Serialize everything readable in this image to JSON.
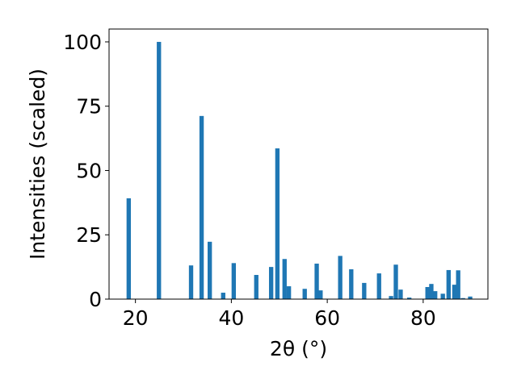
{
  "chart_data": {
    "type": "bar",
    "title": "",
    "xlabel": "2θ (°)",
    "ylabel": "Intensities (scaled)",
    "xlim": [
      14.5,
      93.5
    ],
    "ylim": [
      0,
      105
    ],
    "xticks": [
      20,
      40,
      60,
      80
    ],
    "yticks": [
      0,
      25,
      50,
      75,
      100
    ],
    "grid": false,
    "bar_color": "#1f77b4",
    "bar_width_deg": 0.9,
    "x": [
      18.6,
      24.9,
      31.6,
      33.8,
      35.5,
      38.3,
      40.5,
      45.2,
      48.3,
      49.6,
      51.1,
      52.0,
      55.3,
      57.8,
      58.6,
      62.7,
      65.0,
      67.7,
      70.8,
      73.3,
      74.3,
      75.3,
      77.1,
      80.9,
      81.7,
      82.5,
      84.1,
      85.3,
      86.5,
      87.3,
      88.3,
      89.8
    ],
    "values": [
      39.2,
      100,
      13.1,
      71.2,
      22.3,
      2.5,
      14.0,
      9.4,
      12.5,
      58.6,
      15.6,
      5.0,
      4.0,
      13.8,
      3.4,
      16.8,
      11.6,
      6.3,
      10.0,
      1.2,
      13.4,
      3.7,
      0.6,
      4.7,
      5.9,
      3.1,
      2.1,
      11.3,
      5.6,
      11.2,
      0.4,
      1.0
    ]
  }
}
